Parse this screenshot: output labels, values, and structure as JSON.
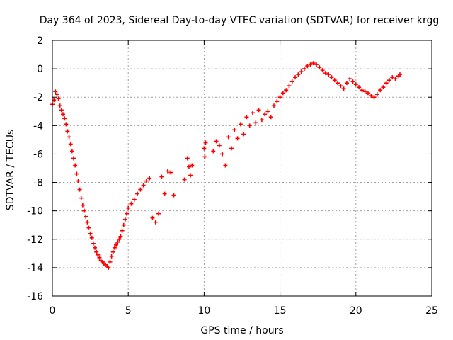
{
  "chart_data": {
    "type": "scatter",
    "title": "Day 364 of 2023, Sidereal Day-to-day VTEC variation (SDTVAR) for receiver krgg",
    "xlabel": "GPS time / hours",
    "ylabel": "SDTVAR / TECUs",
    "xlim": [
      0,
      25
    ],
    "ylim": [
      -16,
      2
    ],
    "x_ticks": [
      0,
      5,
      10,
      15,
      20,
      25
    ],
    "x_tick_labels": [
      "0",
      "5",
      "10",
      "15",
      "20",
      "25"
    ],
    "y_ticks": [
      2,
      0,
      -2,
      -4,
      -6,
      -8,
      -10,
      -12,
      -14,
      -16
    ],
    "y_tick_labels": [
      "2",
      "0",
      "-2",
      "-4",
      "-6",
      "-8",
      "-10",
      "-12",
      "-14",
      "-16"
    ],
    "grid": true,
    "marker": "+",
    "color": "#ff0000",
    "series": [
      {
        "name": "SDTVAR",
        "x": [
          0.0,
          0.1,
          0.2,
          0.3,
          0.4,
          0.5,
          0.6,
          0.7,
          0.8,
          0.9,
          1.0,
          1.1,
          1.2,
          1.3,
          1.4,
          1.5,
          1.6,
          1.7,
          1.8,
          1.9,
          2.0,
          2.1,
          2.2,
          2.3,
          2.4,
          2.5,
          2.6,
          2.7,
          2.8,
          2.9,
          3.0,
          3.1,
          3.2,
          3.3,
          3.4,
          3.5,
          3.6,
          3.7,
          3.8,
          3.9,
          4.0,
          4.1,
          4.2,
          4.3,
          4.4,
          4.5,
          4.6,
          4.7,
          4.8,
          4.9,
          5.0,
          5.2,
          5.4,
          5.6,
          5.8,
          6.0,
          6.2,
          6.4,
          6.6,
          6.8,
          7.0,
          7.2,
          7.4,
          7.6,
          7.8,
          8.0,
          8.7,
          8.9,
          9.0,
          9.1,
          9.2,
          10.0,
          10.05,
          10.1,
          10.6,
          10.8,
          11.0,
          11.2,
          11.4,
          11.6,
          11.8,
          12.0,
          12.2,
          12.4,
          12.6,
          12.8,
          13.0,
          13.2,
          13.4,
          13.6,
          13.8,
          14.0,
          14.2,
          14.4,
          14.6,
          14.8,
          15.0,
          15.2,
          15.4,
          15.6,
          15.8,
          16.0,
          16.2,
          16.4,
          16.6,
          16.8,
          17.0,
          17.2,
          17.4,
          17.6,
          17.8,
          18.0,
          18.2,
          18.4,
          18.6,
          18.8,
          19.0,
          19.2,
          19.4,
          19.6,
          19.8,
          20.0,
          20.2,
          20.4,
          20.6,
          20.8,
          21.0,
          21.2,
          21.4,
          21.6,
          21.8,
          22.0,
          22.2,
          22.4,
          22.6,
          22.8,
          22.9
        ],
        "y": [
          -2.5,
          -2.2,
          -1.6,
          -1.8,
          -2.1,
          -2.6,
          -2.9,
          -3.2,
          -3.5,
          -3.9,
          -4.4,
          -4.8,
          -5.3,
          -5.8,
          -6.3,
          -6.8,
          -7.4,
          -7.9,
          -8.5,
          -9.1,
          -9.6,
          -10.0,
          -10.4,
          -10.8,
          -11.2,
          -11.6,
          -11.9,
          -12.3,
          -12.6,
          -12.9,
          -13.1,
          -13.3,
          -13.5,
          -13.6,
          -13.7,
          -13.8,
          -13.9,
          -14.0,
          -13.6,
          -13.2,
          -12.9,
          -12.6,
          -12.4,
          -12.2,
          -12.0,
          -11.8,
          -11.4,
          -11.0,
          -10.6,
          -10.2,
          -9.8,
          -9.5,
          -9.2,
          -8.8,
          -8.5,
          -8.2,
          -7.9,
          -7.7,
          -10.5,
          -10.8,
          -10.2,
          -7.6,
          -8.8,
          -7.2,
          -7.3,
          -8.9,
          -7.8,
          -6.3,
          -6.9,
          -7.5,
          -6.8,
          -5.6,
          -6.2,
          -5.2,
          -5.8,
          -5.1,
          -5.4,
          -6.0,
          -6.8,
          -4.8,
          -5.6,
          -4.3,
          -4.9,
          -3.9,
          -4.6,
          -3.4,
          -4.0,
          -3.1,
          -3.8,
          -2.9,
          -3.6,
          -3.2,
          -3.0,
          -3.4,
          -2.6,
          -2.3,
          -2.0,
          -1.7,
          -1.5,
          -1.2,
          -0.9,
          -0.6,
          -0.4,
          -0.2,
          0.0,
          0.2,
          0.3,
          0.4,
          0.3,
          0.1,
          -0.1,
          -0.3,
          -0.4,
          -0.6,
          -0.8,
          -1.0,
          -1.2,
          -1.4,
          -1.0,
          -0.7,
          -0.9,
          -1.1,
          -1.3,
          -1.5,
          -1.6,
          -1.7,
          -1.9,
          -2.0,
          -1.8,
          -1.5,
          -1.3,
          -1.0,
          -0.8,
          -0.6,
          -0.7,
          -0.5,
          -0.4
        ]
      }
    ]
  }
}
